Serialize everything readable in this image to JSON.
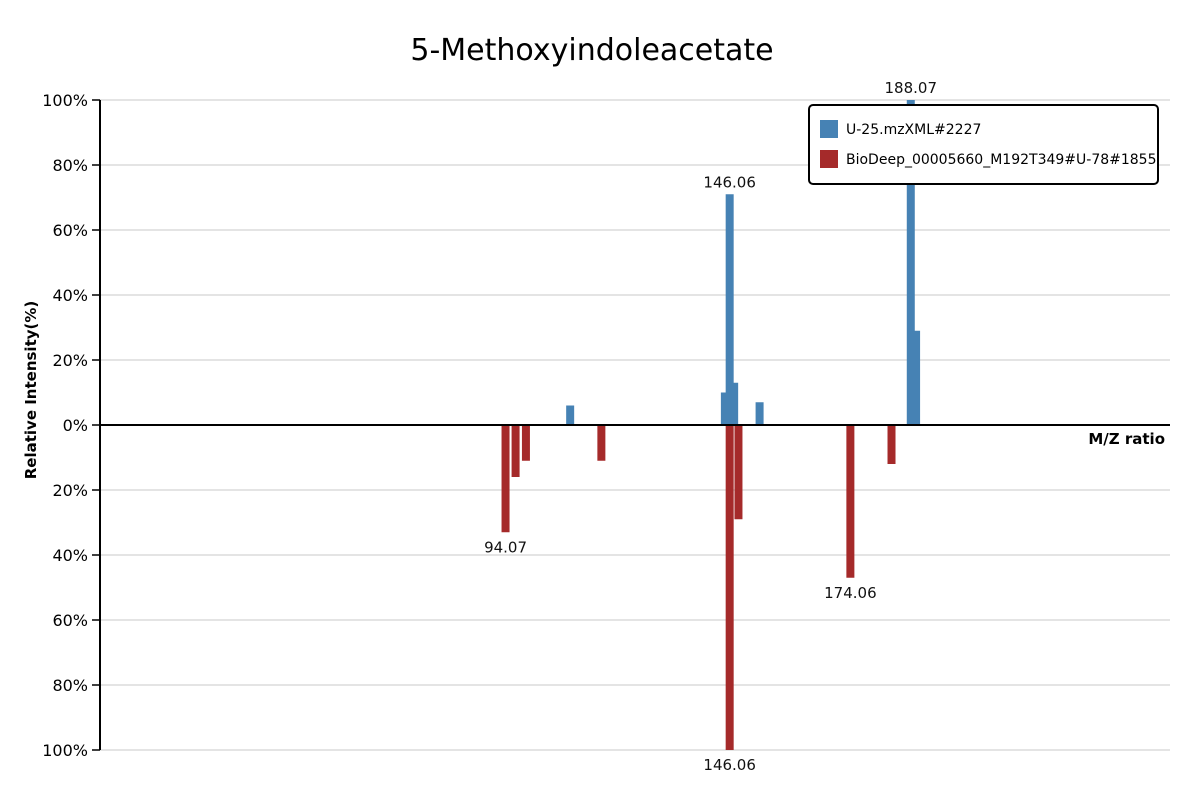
{
  "chart_data": {
    "type": "bar",
    "title": "5-Methoxyindoleacetate",
    "xlabel": "M/Z ratio",
    "ylabel": "Relative Intensity(%)",
    "ylim": [
      -100,
      100
    ],
    "xlim": [
      0,
      248.2
    ],
    "grid": true,
    "legend_position": "top-right",
    "y_ticks": [
      "100%",
      "80%",
      "60%",
      "40%",
      "20%",
      "0%",
      "20%",
      "40%",
      "60%",
      "80%",
      "100%"
    ],
    "series": [
      {
        "name": "U-25.mzXML#2227",
        "color": "#4682b4",
        "direction": "up",
        "peaks": [
          {
            "mz": 109.06,
            "intensity": 6
          },
          {
            "mz": 144.95,
            "intensity": 10
          },
          {
            "mz": 146.06,
            "intensity": 71,
            "label": "146.06"
          },
          {
            "mz": 147.1,
            "intensity": 13
          },
          {
            "mz": 153.0,
            "intensity": 7
          },
          {
            "mz": 188.07,
            "intensity": 100,
            "label": "188.07"
          },
          {
            "mz": 189.3,
            "intensity": 29
          }
        ]
      },
      {
        "name": "BioDeep_00005660_M192T349#U-78#1855",
        "color": "#a52a2a",
        "direction": "down",
        "peaks": [
          {
            "mz": 94.07,
            "intensity": 33,
            "label": "94.07"
          },
          {
            "mz": 96.4,
            "intensity": 16
          },
          {
            "mz": 98.8,
            "intensity": 11
          },
          {
            "mz": 116.3,
            "intensity": 11
          },
          {
            "mz": 146.06,
            "intensity": 100,
            "label": "146.06"
          },
          {
            "mz": 148.1,
            "intensity": 29
          },
          {
            "mz": 174.06,
            "intensity": 47,
            "label": "174.06"
          },
          {
            "mz": 183.6,
            "intensity": 12
          }
        ]
      }
    ]
  }
}
